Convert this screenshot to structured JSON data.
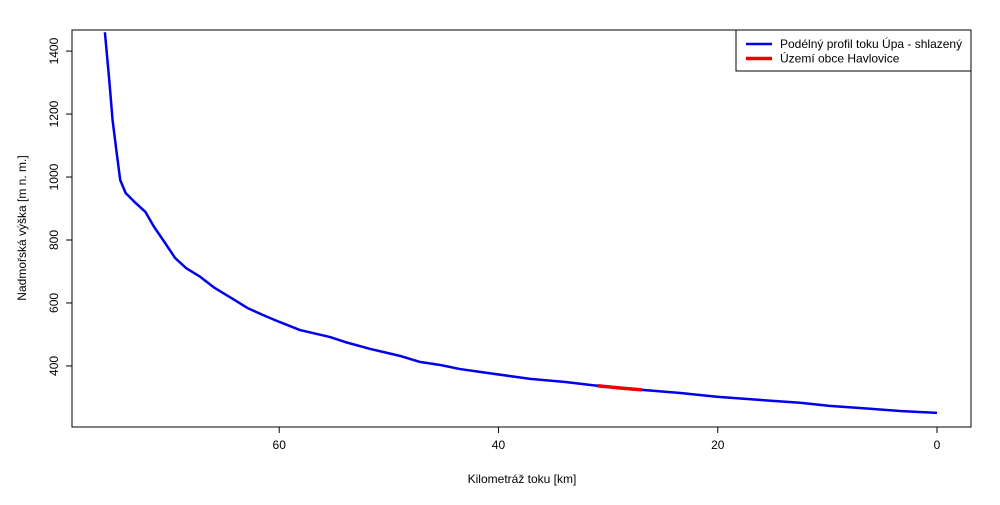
{
  "chart_data": {
    "type": "line",
    "x_label": "Kilometráž toku [km]",
    "y_label": "Nadmořská výška [m n. m.]",
    "x": [
      75.9,
      75.5,
      75.2,
      74.8,
      74.5,
      74.0,
      73.2,
      72.2,
      71.4,
      70.4,
      69.5,
      68.5,
      67.2,
      65.9,
      65.0,
      64.1,
      62.9,
      61.3,
      60.0,
      58.1,
      55.4,
      54.0,
      51.7,
      49.0,
      47.2,
      45.3,
      43.5,
      41.7,
      39.0,
      37.1,
      33.9,
      31.0,
      28.9,
      26.9,
      23.4,
      20.1,
      16.2,
      12.5,
      9.8,
      6.1,
      3.4,
      0
    ],
    "series": [
      {
        "name": "Podélný profil toku Úpa - shlazený",
        "color": "#0000ee",
        "values": [
          1460,
          1307,
          1181,
          1070,
          990,
          949,
          921,
          889,
          841,
          790,
          743,
          711,
          683,
          648,
          629,
          610,
          584,
          559,
          540,
          514,
          492,
          476,
          454,
          432,
          413,
          403,
          390,
          381,
          368,
          359,
          349,
          337,
          330,
          324,
          314,
          302,
          292,
          283,
          273,
          264,
          257,
          251
        ]
      },
      {
        "name": "Území obce Havlovice",
        "color": "#ee0000",
        "values": [
          null,
          null,
          null,
          null,
          null,
          null,
          null,
          null,
          null,
          null,
          null,
          null,
          null,
          null,
          null,
          null,
          null,
          null,
          null,
          null,
          null,
          null,
          null,
          null,
          null,
          null,
          null,
          null,
          null,
          null,
          null,
          337,
          330,
          324,
          null,
          null,
          null,
          null,
          null,
          null,
          null,
          null
        ]
      }
    ],
    "xlim": [
      78.9,
      -3.1
    ],
    "xticks": [
      60,
      40,
      20,
      0
    ],
    "ylim": [
      206,
      1467
    ],
    "yticks": [
      400,
      600,
      800,
      1000,
      1200,
      1400
    ],
    "legend": "top-right"
  }
}
